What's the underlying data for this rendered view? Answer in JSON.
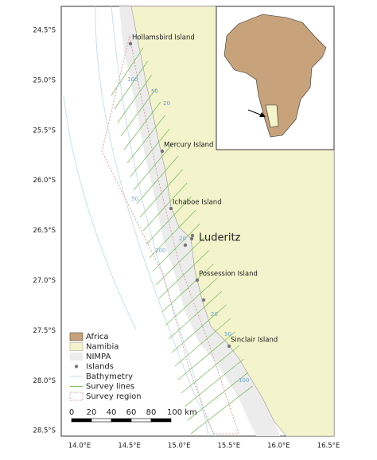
{
  "map": {
    "lat_ticks": [
      "24.5°S",
      "25.0°S",
      "25.5°S",
      "26.0°S",
      "26.5°S",
      "27.0°S",
      "27.5°S",
      "28.0°S",
      "28.5°S"
    ],
    "lon_ticks": [
      "14.0°E",
      "14.5°E",
      "15.0°E",
      "15.5°E",
      "16.0°E",
      "16.5°E"
    ],
    "islands": [
      "Hollamsbird Island",
      "Mercury Island",
      "Ichaboe Island",
      "Possession Island",
      "Sinclair Island"
    ],
    "town": "Luderitz",
    "bathymetry_labels": [
      "100",
      "50",
      "20",
      "50",
      "20",
      "100",
      "20",
      "50",
      "100"
    ],
    "legend": [
      "Africa",
      "Namibia",
      "NIMPA",
      "Islands",
      "Bathymetry",
      "Survey lines",
      "Survey region"
    ],
    "scale": [
      "0",
      "20",
      "40",
      "60",
      "80",
      "100 km"
    ]
  }
}
